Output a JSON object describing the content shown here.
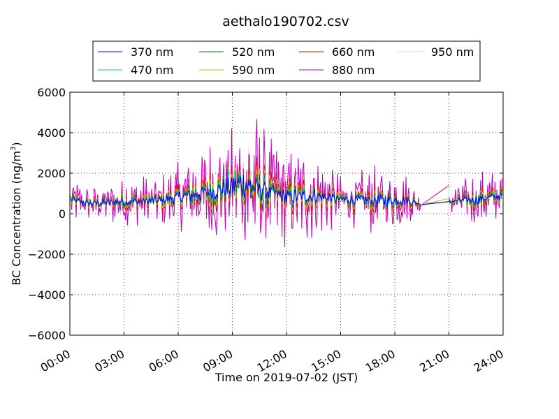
{
  "chart_data": {
    "type": "line",
    "title": "aethalo190702.csv",
    "xlabel": "Time on 2019-07-02 (JST)",
    "ylabel_main": "BC Concentration (ng/m",
    "ylabel_sup": "3",
    "ylabel_close": ")",
    "xlim": [
      0,
      24
    ],
    "ylim": [
      -6000,
      6000
    ],
    "x_ticks": [
      0,
      3,
      6,
      9,
      12,
      15,
      18,
      21,
      24
    ],
    "x_tick_labels": [
      "00:00",
      "03:00",
      "06:00",
      "09:00",
      "12:00",
      "15:00",
      "18:00",
      "21:00",
      "24:00"
    ],
    "y_ticks": [
      -6000,
      -4000,
      -2000,
      0,
      2000,
      4000,
      6000
    ],
    "y_tick_labels": [
      "−6000",
      "−4000",
      "−2000",
      "0",
      "2000",
      "4000",
      "6000"
    ],
    "grid": true,
    "legend_placement": "top-center",
    "series": [
      {
        "name": "370 nm",
        "color": "#0000ff",
        "amp": 0.18,
        "phase": 0.0
      },
      {
        "name": "470 nm",
        "color": "#00bfbf",
        "amp": 0.22,
        "phase": 0.7
      },
      {
        "name": "520 nm",
        "color": "#008000",
        "amp": 0.28,
        "phase": 1.4
      },
      {
        "name": "590 nm",
        "color": "#bfbf00",
        "amp": 0.34,
        "phase": 2.1
      },
      {
        "name": "660 nm",
        "color": "#ff0000",
        "amp": 0.45,
        "phase": 2.8
      },
      {
        "name": "880 nm",
        "color": "#bf00bf",
        "amp": 1.0,
        "phase": 3.5
      },
      {
        "name": "950 nm",
        "color": "#ffc0cb",
        "amp": 0.85,
        "phase": 4.2
      }
    ],
    "baseline_profile": {
      "x": [
        0.0,
        1.0,
        3.0,
        5.0,
        6.5,
        8.0,
        9.5,
        10.5,
        12.0,
        13.5,
        15.0,
        17.0,
        18.5,
        19.5,
        21.0,
        22.5,
        24.0
      ],
      "y": [
        700,
        500,
        600,
        650,
        900,
        1100,
        1500,
        1200,
        800,
        900,
        700,
        650,
        700,
        450,
        600,
        700,
        900
      ]
    },
    "noise_profile": {
      "x": [
        0.0,
        1.0,
        3.0,
        5.0,
        6.5,
        8.0,
        9.5,
        10.0,
        11.0,
        12.0,
        13.5,
        15.0,
        17.0,
        18.5,
        19.5,
        21.0,
        22.5,
        24.0
      ],
      "y": [
        1200,
        900,
        1300,
        1300,
        2200,
        2800,
        3800,
        4500,
        3000,
        2600,
        2400,
        1300,
        1800,
        1700,
        200,
        600,
        1500,
        1200
      ]
    },
    "gaps": [
      [
        19.5,
        21.0
      ]
    ]
  }
}
